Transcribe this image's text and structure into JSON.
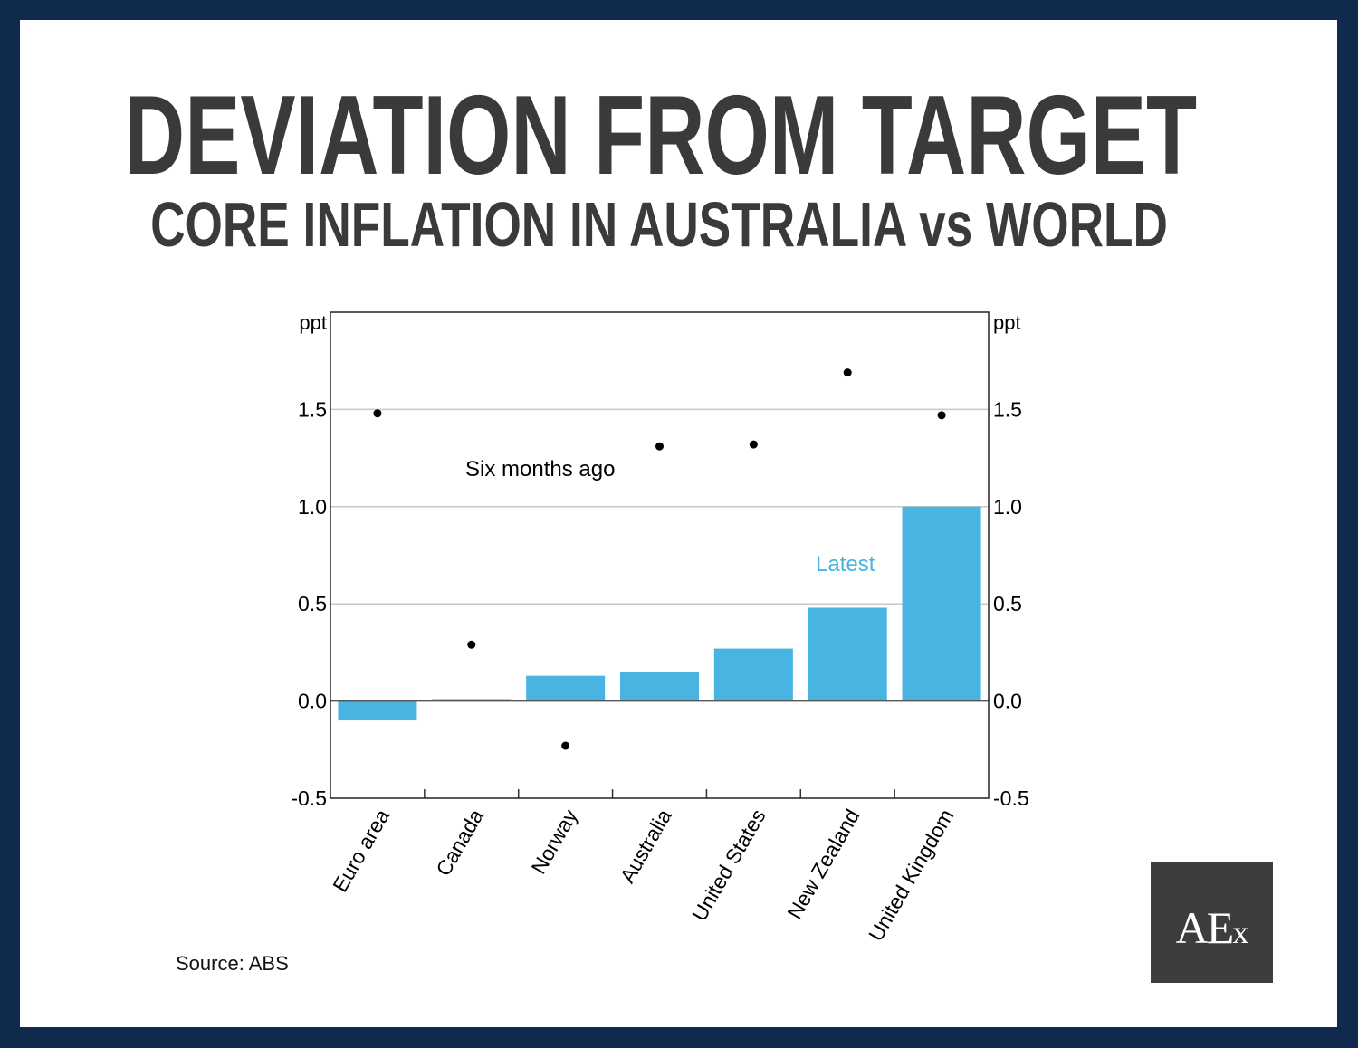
{
  "header": {
    "title": "DEVIATION FROM TARGET",
    "subtitle": "CORE INFLATION IN AUSTRALIA vs WORLD"
  },
  "source": "Source: ABS",
  "logo": {
    "text": "AEx",
    "bg": "#3d3d3d"
  },
  "colors": {
    "frame": "#0f2a4d",
    "bar": "#48b4e1",
    "dot": "#000000",
    "title": "#3a3a3a"
  },
  "chart_data": {
    "type": "bar",
    "categories": [
      "Euro area",
      "Canada",
      "Norway",
      "Australia",
      "United States",
      "New Zealand",
      "United Kingdom"
    ],
    "series": [
      {
        "name": "Latest",
        "kind": "bar",
        "values": [
          -0.1,
          0.01,
          0.13,
          0.15,
          0.27,
          0.48,
          1.0
        ]
      },
      {
        "name": "Six months ago",
        "kind": "scatter",
        "values": [
          1.48,
          0.29,
          -0.23,
          1.31,
          1.32,
          1.69,
          1.47
        ]
      }
    ],
    "ylabel_left": "ppt",
    "ylabel_right": "ppt",
    "ylim": [
      -0.5,
      2.0
    ],
    "yticks": [
      -0.5,
      0.0,
      0.5,
      1.0,
      1.5
    ],
    "ytick_labels": [
      "-0.5",
      "0.0",
      "0.5",
      "1.0",
      "1.5"
    ],
    "grid": true,
    "annotations": [
      "Six months ago",
      "Latest"
    ]
  }
}
